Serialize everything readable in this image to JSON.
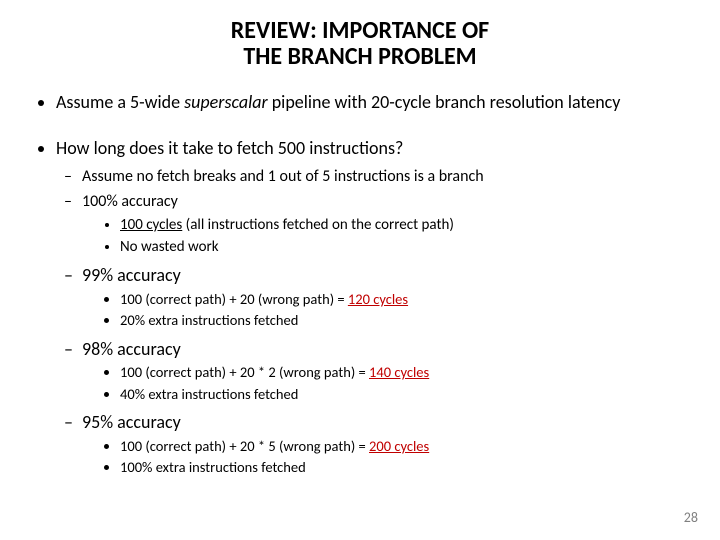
{
  "title_line1": "REVIEW: IMPORTANCE OF",
  "title_line2": "THE BRANCH PROBLEM",
  "b1_pre": "Assume a 5-wide ",
  "b1_it": "superscalar",
  "b1_post": " pipeline with 20-cycle branch resolution latency",
  "b2": "How long does it take to fetch 500 instructions?",
  "d1": "Assume no fetch breaks and 1 out of 5 instructions is a branch",
  "d2": "100% accuracy",
  "d2a_pre": "100 cycles",
  "d2a_post": " (all instructions fetched on the correct path)",
  "d2b": "No wasted work",
  "d3": "99% accuracy",
  "d3a_pre": "100 (correct path) + 20 (wrong path) = ",
  "d3a_red": "120 cycles",
  "d3b": "20% extra instructions fetched",
  "d4": "98% accuracy",
  "d4a_pre": "100 (correct path) + 20 * 2 (wrong path) = ",
  "d4a_red": "140 cycles",
  "d4b": "40% extra instructions fetched",
  "d5": "95% accuracy",
  "d5a_pre": "100 (correct path) + 20 * 5 (wrong path) = ",
  "d5a_red": "200 cycles",
  "d5b": "100% extra instructions fetched",
  "page_number": "28",
  "colors": {
    "red": "#c00000",
    "text": "#000000",
    "pagenum": "#808080",
    "bg": "#ffffff"
  },
  "fonts": {
    "title_pt": 24,
    "bullet_pt": 18,
    "dash_pt": 16,
    "dot_pt": 15
  }
}
